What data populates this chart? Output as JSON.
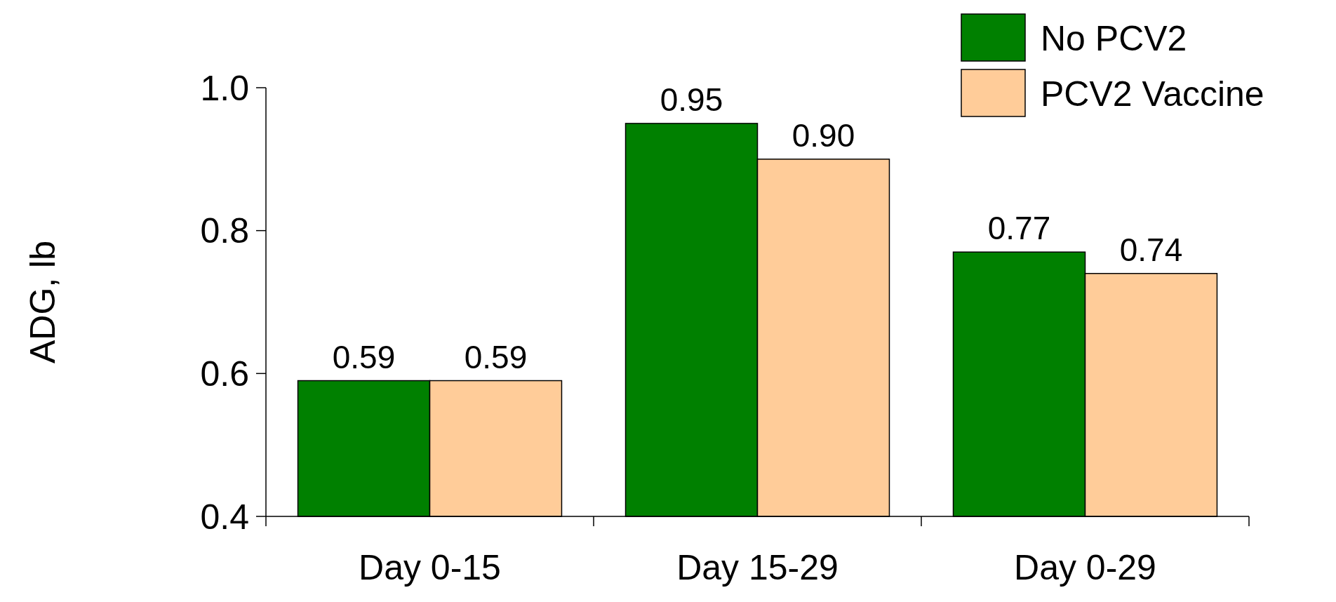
{
  "chart_data": {
    "type": "bar",
    "ylabel": "ADG, lb",
    "categories": [
      "Day 0-15",
      "Day 15-29",
      "Day 0-29"
    ],
    "series": [
      {
        "name": "No PCV2",
        "color": "#008000",
        "values": [
          0.59,
          0.95,
          0.77
        ],
        "value_labels": [
          "0.59",
          "0.95",
          "0.77"
        ]
      },
      {
        "name": "PCV2 Vaccine",
        "color": "#ffcc99",
        "values": [
          0.59,
          0.9,
          0.74
        ],
        "value_labels": [
          "0.59",
          "0.90",
          "0.74"
        ]
      }
    ],
    "ylim": [
      0.4,
      1.0
    ],
    "yticks": [
      0.4,
      0.6,
      0.8,
      {
        "value": 1.0,
        "label": "1.0"
      }
    ],
    "legend": "top right"
  }
}
